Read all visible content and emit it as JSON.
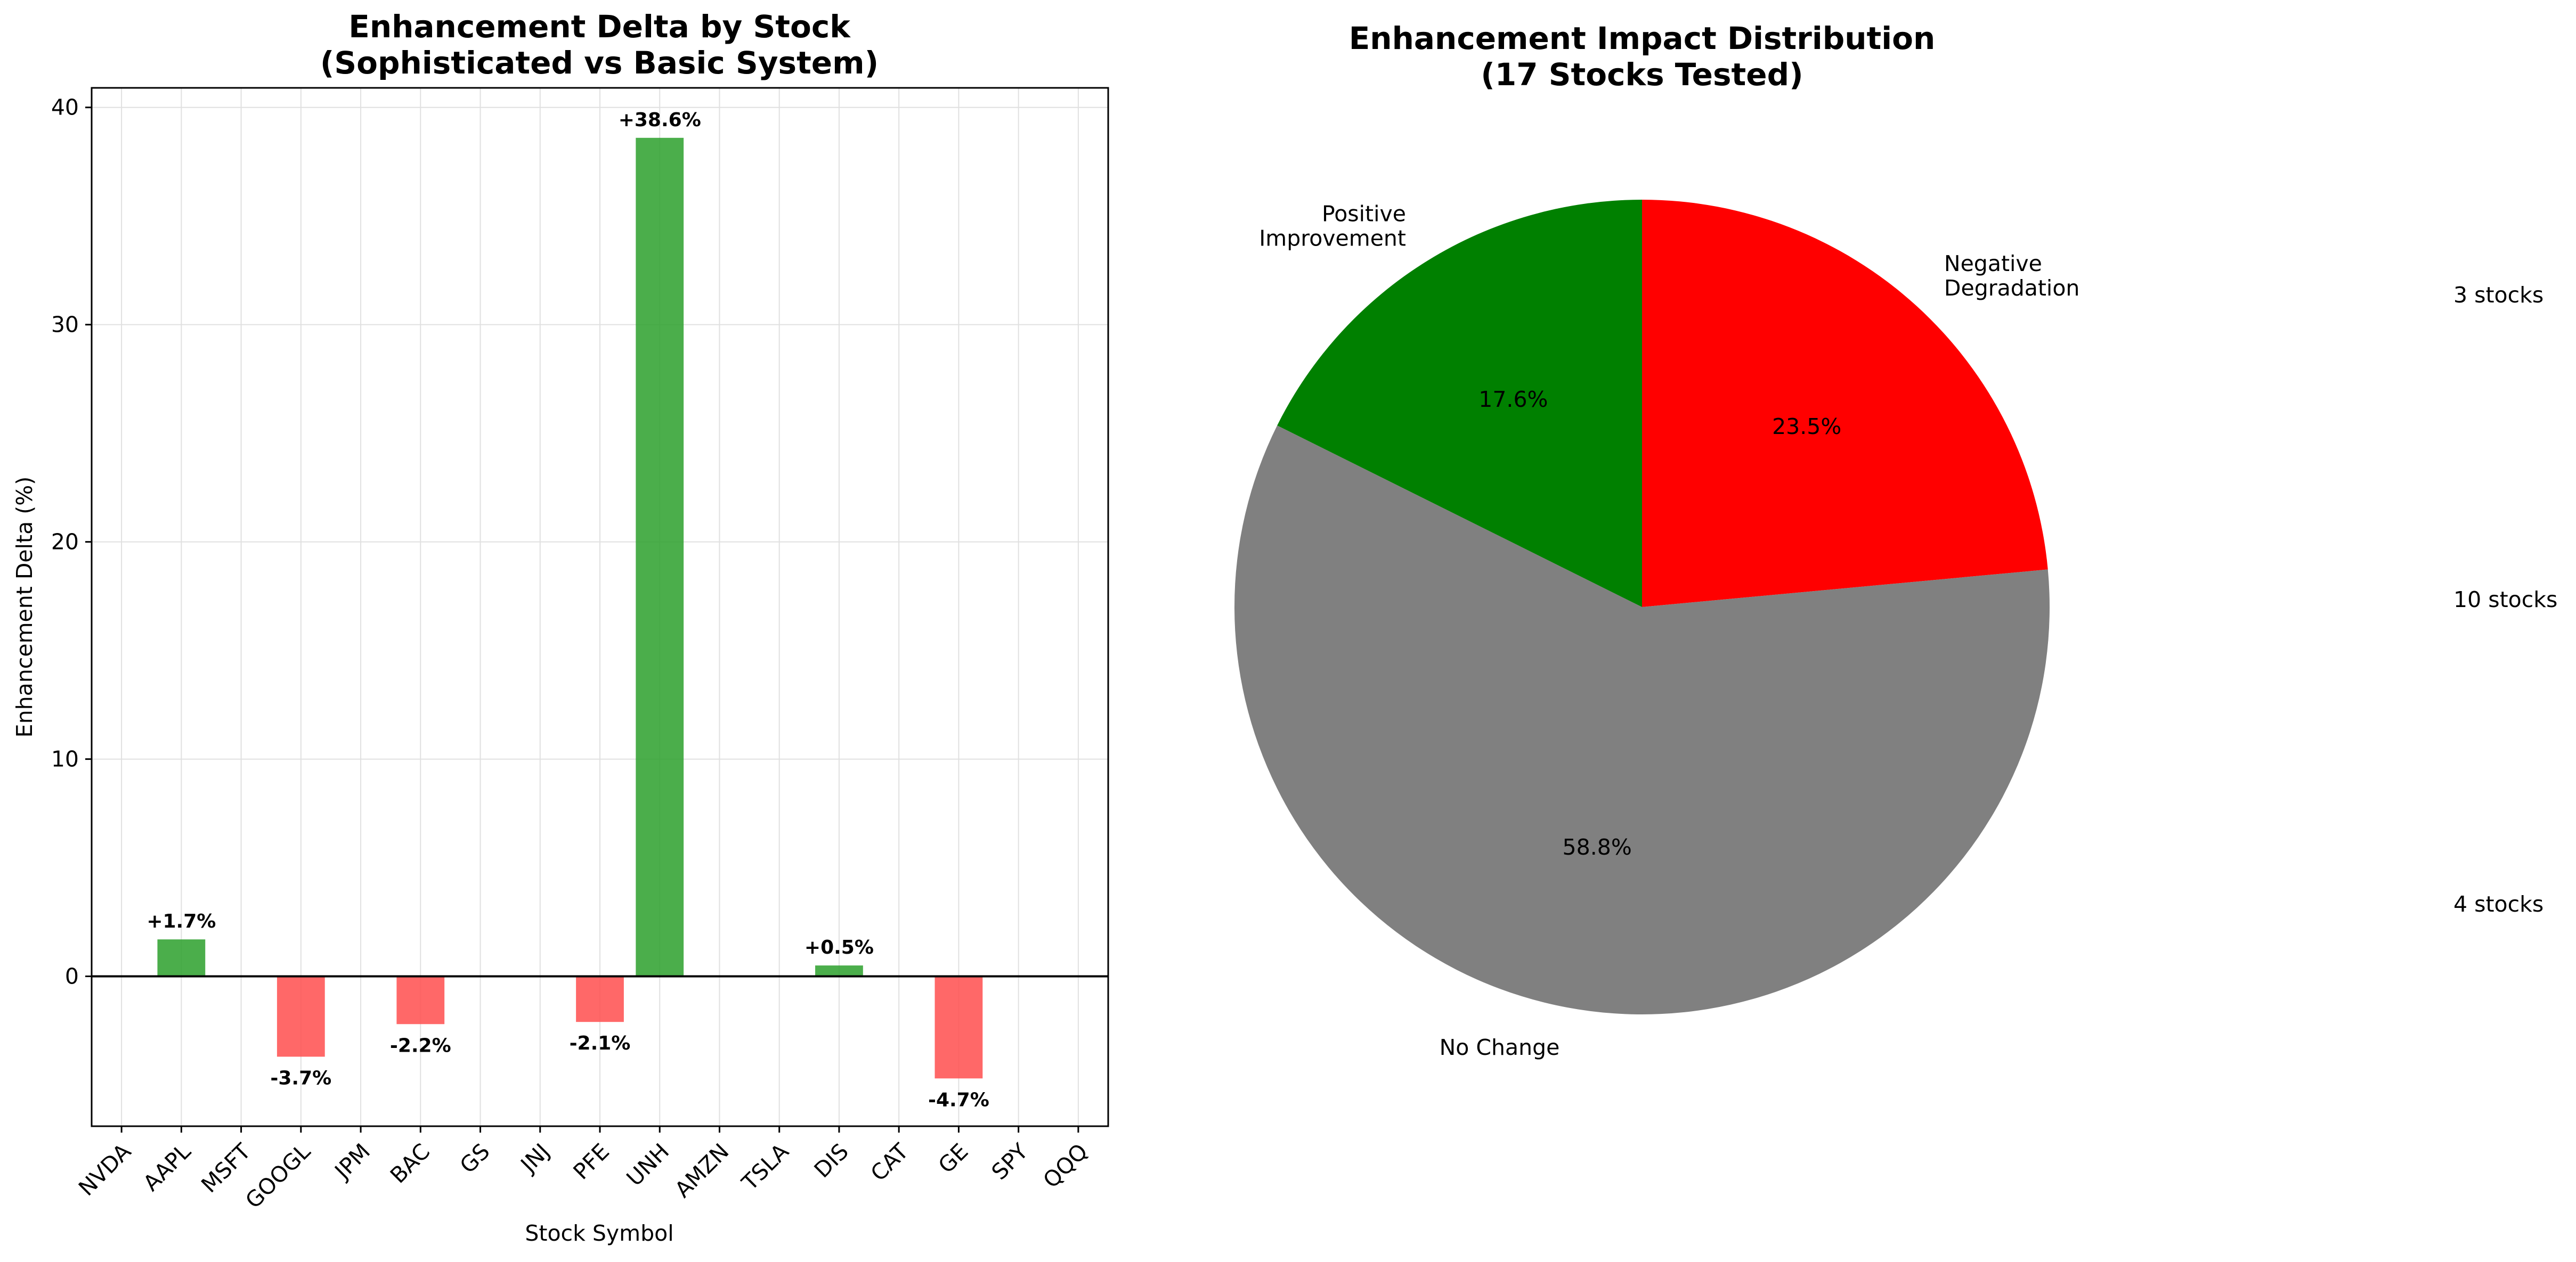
{
  "chart_data": [
    {
      "type": "bar",
      "title": [
        "Enhancement Delta by Stock",
        "(Sophisticated vs Basic System)"
      ],
      "xlabel": "Stock Symbol",
      "ylabel": "Enhancement Delta (%)",
      "categories": [
        "NVDA",
        "AAPL",
        "MSFT",
        "GOOGL",
        "JPM",
        "BAC",
        "GS",
        "JNJ",
        "PFE",
        "UNH",
        "AMZN",
        "TSLA",
        "DIS",
        "CAT",
        "GE",
        "SPY",
        "QQQ"
      ],
      "values": [
        0,
        1.7,
        0,
        -3.7,
        0,
        -2.2,
        0,
        0,
        -2.1,
        38.6,
        0,
        0,
        0.5,
        0,
        -4.7,
        0,
        0
      ],
      "data_labels": [
        "",
        "+1.7%",
        "",
        "-3.7%",
        "",
        "-2.2%",
        "",
        "",
        "-2.1%",
        "+38.6%",
        "",
        "",
        "+0.5%",
        "",
        "-4.7%",
        "",
        ""
      ],
      "ylim": [
        -6.9,
        40.9
      ],
      "yticks": [
        0,
        10,
        20,
        30,
        40
      ],
      "grid": true,
      "colors": {
        "positive": "#2ca02c",
        "negative": "#ff4d4d",
        "zero_line": "#000000"
      }
    },
    {
      "type": "pie",
      "title": [
        "Enhancement Impact Distribution",
        "(17 Stocks Tested)"
      ],
      "slices": [
        {
          "label": [
            "Negative",
            "Degradation"
          ],
          "value": 4,
          "pct_label": "23.5%",
          "color": "#ff0000"
        },
        {
          "label": [
            "No Change"
          ],
          "value": 10,
          "pct_label": "58.8%",
          "color": "#808080"
        },
        {
          "label": [
            "Positive",
            "Improvement"
          ],
          "value": 3,
          "pct_label": "17.6%",
          "color": "#008000"
        }
      ],
      "start_angle_deg": 90,
      "direction": "clockwise",
      "side_labels": [
        "3 stocks",
        "10 stocks",
        "4 stocks"
      ]
    }
  ]
}
